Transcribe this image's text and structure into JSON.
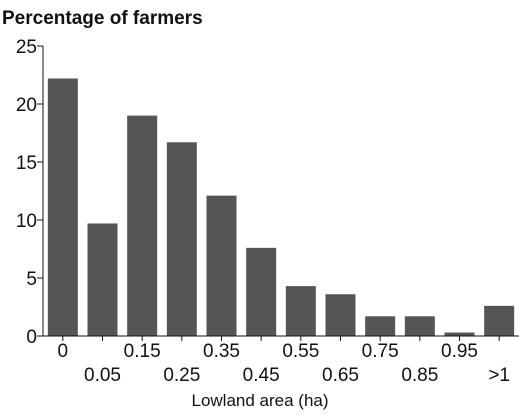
{
  "chart_data": {
    "type": "bar",
    "title": "Percentage of farmers",
    "xlabel": "Lowland area (ha)",
    "ylabel": "",
    "ylim": [
      0,
      25
    ],
    "yticks": [
      0,
      5,
      10,
      15,
      20,
      25
    ],
    "grid": false,
    "categories": [
      "0",
      "0.05",
      "0.15",
      "0.25",
      "0.35",
      "0.45",
      "0.55",
      "0.65",
      "0.75",
      "0.85",
      "0.95",
      ">1"
    ],
    "values": [
      22.2,
      9.7,
      19.0,
      16.7,
      12.1,
      7.6,
      4.3,
      3.6,
      1.7,
      1.7,
      0.3,
      2.6
    ],
    "colors": {
      "bar": "#555555",
      "axis": "#111111",
      "text": "#111111"
    }
  }
}
